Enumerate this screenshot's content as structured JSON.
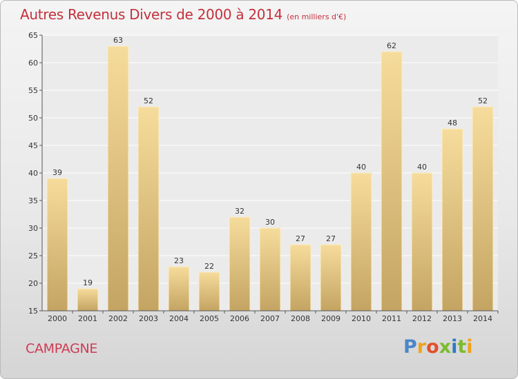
{
  "header": {
    "title": "Autres Revenus Divers de 2000 à 2014",
    "unit": "(en milliers d'€)"
  },
  "footer": {
    "town": "CAMPAGNE",
    "logo": [
      "P",
      "r",
      "o",
      "x",
      "i",
      "t",
      "i"
    ]
  },
  "colors": {
    "title": "#c4303c",
    "town": "#d03a54",
    "bar_light": "#f6dc9c",
    "bar_dark": "#c4a462"
  },
  "chart_data": {
    "type": "bar",
    "categories": [
      "2000",
      "2001",
      "2002",
      "2003",
      "2004",
      "2005",
      "2006",
      "2007",
      "2008",
      "2009",
      "2010",
      "2011",
      "2012",
      "2013",
      "2014"
    ],
    "values": [
      39,
      19,
      63,
      52,
      23,
      22,
      32,
      30,
      27,
      27,
      40,
      62,
      40,
      48,
      52
    ],
    "ylim": [
      15,
      65
    ],
    "yticks": [
      15,
      20,
      25,
      30,
      35,
      40,
      45,
      50,
      55,
      60,
      65
    ],
    "grid": true,
    "legend": "none"
  }
}
